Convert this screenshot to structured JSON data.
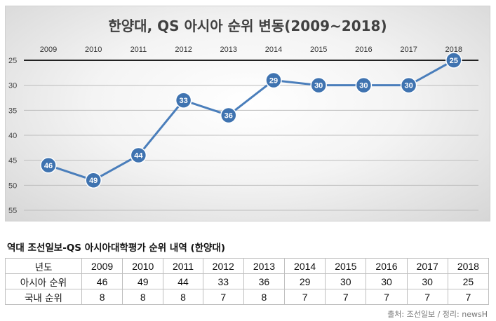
{
  "chart_data": {
    "type": "line",
    "title": "한양대, QS 아시아 순위 변동(2009~2018)",
    "categories": [
      "2009",
      "2010",
      "2011",
      "2012",
      "2013",
      "2014",
      "2015",
      "2016",
      "2017",
      "2018"
    ],
    "series": [
      {
        "name": "아시아 순위",
        "values": [
          46,
          49,
          44,
          33,
          36,
          29,
          30,
          30,
          30,
          25
        ]
      }
    ],
    "ylim": [
      25,
      55
    ],
    "y_inverted": true,
    "yticks": [
      25,
      30,
      35,
      40,
      45,
      50,
      55
    ],
    "x_axis_position": "top",
    "grid": true,
    "line_color": "#4a7ebb",
    "xlabel": "",
    "ylabel": ""
  },
  "table": {
    "title": "역대 조선일보-QS 아시아대학평가 순위 내역 (한양대)",
    "header": [
      "년도",
      "2009",
      "2010",
      "2011",
      "2012",
      "2013",
      "2014",
      "2015",
      "2016",
      "2017",
      "2018"
    ],
    "rows": [
      [
        "아시아 순위",
        "46",
        "49",
        "44",
        "33",
        "36",
        "29",
        "30",
        "30",
        "30",
        "25"
      ],
      [
        "국내 순위",
        "8",
        "8",
        "8",
        "7",
        "8",
        "7",
        "7",
        "7",
        "7",
        "7"
      ]
    ]
  },
  "source": "출처: 조선일보 / 정리: newsH"
}
